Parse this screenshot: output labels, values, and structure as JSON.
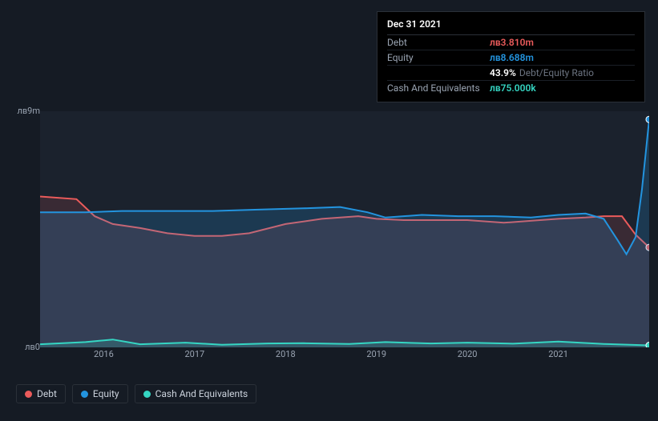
{
  "tooltip": {
    "date": "Dec 31 2021",
    "rows": [
      {
        "label": "Debt",
        "value": "лв3.810m",
        "color": "#eb5b5b"
      },
      {
        "label": "Equity",
        "value": "лв8.688m",
        "color": "#2394df"
      },
      {
        "label": "",
        "value": "43.9%",
        "suffix": "Debt/Equity Ratio",
        "color": "#ffffff"
      },
      {
        "label": "Cash And Equivalents",
        "value": "лв75.000k",
        "color": "#35d6c3"
      }
    ]
  },
  "chart": {
    "type": "area",
    "background_color": "#1b222d",
    "page_background": "#151b24",
    "ylim": [
      0,
      9
    ],
    "y_unit_prefix": "лв",
    "y_unit_suffix": "m",
    "y_ticks": [
      {
        "v": 9,
        "label": "лв9m"
      },
      {
        "v": 0,
        "label": "лв0"
      }
    ],
    "x_range": [
      2015.3,
      2022.0
    ],
    "x_ticks": [
      2016,
      2017,
      2018,
      2019,
      2020,
      2021
    ],
    "series": [
      {
        "name": "Debt",
        "color": "#eb5b5b",
        "fill_opacity": 0.15,
        "line_width": 2,
        "points": [
          [
            2015.3,
            5.75
          ],
          [
            2015.7,
            5.65
          ],
          [
            2015.9,
            5.0
          ],
          [
            2016.1,
            4.7
          ],
          [
            2016.4,
            4.55
          ],
          [
            2016.7,
            4.35
          ],
          [
            2017.0,
            4.25
          ],
          [
            2017.3,
            4.25
          ],
          [
            2017.6,
            4.35
          ],
          [
            2018.0,
            4.7
          ],
          [
            2018.4,
            4.9
          ],
          [
            2018.8,
            5.0
          ],
          [
            2019.0,
            4.9
          ],
          [
            2019.3,
            4.85
          ],
          [
            2019.7,
            4.85
          ],
          [
            2020.0,
            4.85
          ],
          [
            2020.4,
            4.75
          ],
          [
            2020.8,
            4.85
          ],
          [
            2021.0,
            4.9
          ],
          [
            2021.3,
            4.95
          ],
          [
            2021.5,
            5.0
          ],
          [
            2021.7,
            5.0
          ],
          [
            2021.85,
            4.3
          ],
          [
            2022.0,
            3.81
          ]
        ]
      },
      {
        "name": "Equity",
        "color": "#2394df",
        "fill_opacity": 0.2,
        "line_width": 2,
        "points": [
          [
            2015.3,
            5.15
          ],
          [
            2015.8,
            5.15
          ],
          [
            2016.2,
            5.2
          ],
          [
            2016.7,
            5.2
          ],
          [
            2017.2,
            5.2
          ],
          [
            2017.7,
            5.25
          ],
          [
            2018.2,
            5.3
          ],
          [
            2018.6,
            5.35
          ],
          [
            2018.9,
            5.15
          ],
          [
            2019.1,
            4.95
          ],
          [
            2019.5,
            5.05
          ],
          [
            2019.9,
            5.0
          ],
          [
            2020.3,
            5.0
          ],
          [
            2020.7,
            4.95
          ],
          [
            2021.0,
            5.05
          ],
          [
            2021.3,
            5.1
          ],
          [
            2021.5,
            4.9
          ],
          [
            2021.65,
            4.1
          ],
          [
            2021.75,
            3.55
          ],
          [
            2021.85,
            4.2
          ],
          [
            2021.92,
            6.0
          ],
          [
            2022.0,
            8.688
          ]
        ]
      },
      {
        "name": "Cash And Equivalents",
        "color": "#35d6c3",
        "fill_opacity": 0.18,
        "line_width": 2,
        "points": [
          [
            2015.3,
            0.12
          ],
          [
            2015.8,
            0.2
          ],
          [
            2016.1,
            0.3
          ],
          [
            2016.4,
            0.12
          ],
          [
            2016.9,
            0.18
          ],
          [
            2017.3,
            0.1
          ],
          [
            2017.8,
            0.15
          ],
          [
            2018.2,
            0.16
          ],
          [
            2018.7,
            0.13
          ],
          [
            2019.1,
            0.2
          ],
          [
            2019.6,
            0.15
          ],
          [
            2020.0,
            0.18
          ],
          [
            2020.5,
            0.14
          ],
          [
            2021.0,
            0.22
          ],
          [
            2021.5,
            0.13
          ],
          [
            2022.0,
            0.075
          ]
        ]
      }
    ]
  },
  "legend": [
    {
      "label": "Debt",
      "color": "#eb5b5b"
    },
    {
      "label": "Equity",
      "color": "#2394df"
    },
    {
      "label": "Cash And Equivalents",
      "color": "#35d6c3"
    }
  ]
}
